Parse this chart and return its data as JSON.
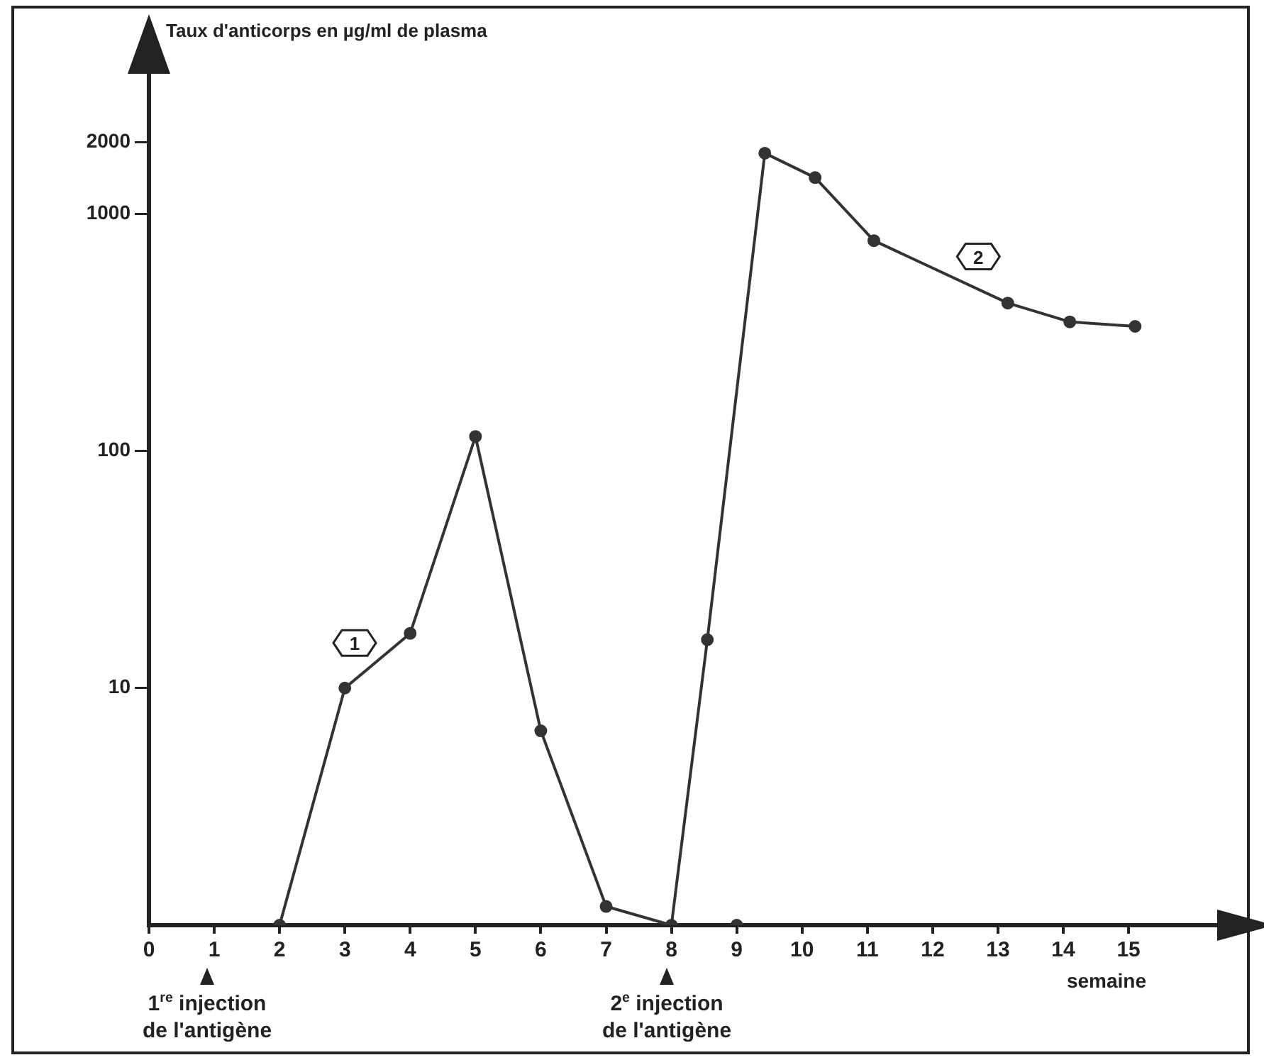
{
  "chart_data": {
    "type": "line",
    "xlabel": "semaine",
    "ylabel": "Taux d'anticorps en µg/ml de plasma",
    "log": "y",
    "marker": "circle",
    "line_style": "solid",
    "xlim": [
      0,
      16.4
    ],
    "xticks": [
      0,
      1,
      2,
      3,
      4,
      5,
      6,
      7,
      8,
      9,
      10,
      11,
      12,
      13,
      14,
      15
    ],
    "ylim": [
      1,
      4000
    ],
    "yticks": [
      10,
      100,
      1000,
      2000
    ],
    "series": [
      {
        "color": "#333333",
        "x": [
          2,
          3,
          4,
          5,
          6,
          7,
          8,
          8.55,
          9.43,
          10.2,
          11.1,
          13.15,
          14.1,
          15.1
        ],
        "values": [
          1,
          10,
          17,
          115,
          6.6,
          1.2,
          1,
          16,
          1800,
          1420,
          770,
          420,
          350,
          335
        ]
      },
      {
        "type": "scatter",
        "color": "#333333",
        "x": [
          9
        ],
        "values": [
          1
        ]
      }
    ],
    "annotations": [
      {
        "text": "1",
        "x": 3.15,
        "y": 15.5
      },
      {
        "text": "2",
        "x": 12.7,
        "y": 660
      },
      "1$^{re}$ injection\nde l'antigène",
      "2$^{e}$ injection\nde l'antigène"
    ]
  }
}
